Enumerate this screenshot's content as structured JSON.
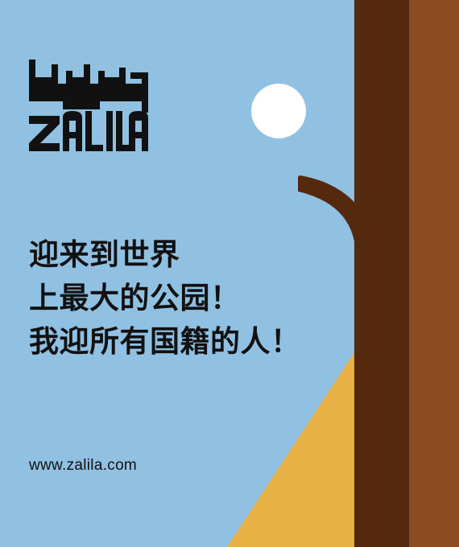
{
  "logo": {
    "wordmark": "ZALILA"
  },
  "headline": {
    "line_1": "迎来到世界",
    "line_2": "上最大的公园！",
    "line_3": "我迎所有国籍的人！"
  },
  "website": "www.zalila.com",
  "colors": {
    "sky": "#90c0e2",
    "sun": "#ffffff",
    "trunk_dark": "#55290e",
    "trunk_light": "#8b4c22",
    "hill": "#e7b145",
    "ink": "#111111"
  }
}
